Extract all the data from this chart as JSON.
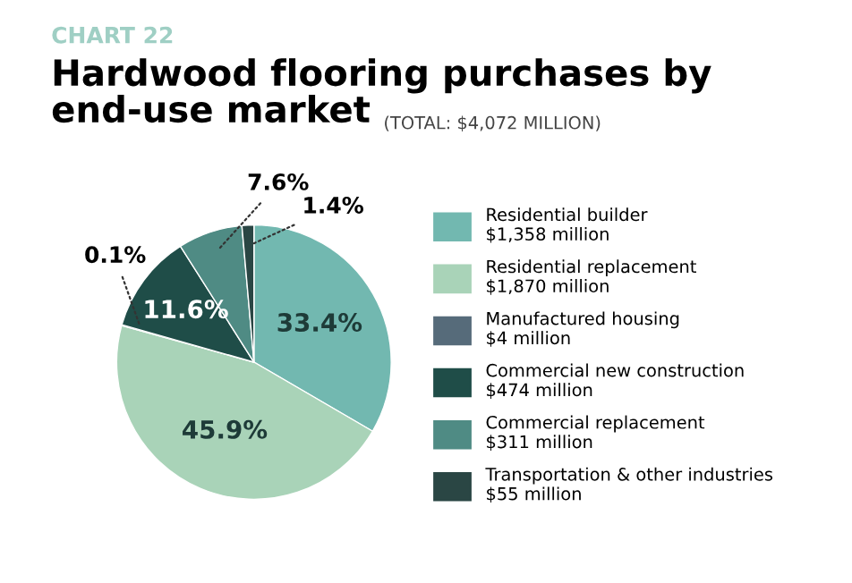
{
  "chart_data": {
    "type": "pie",
    "title": "Hardwood flooring purchases by end-use market",
    "subtitle": "(TOTAL: $4,072 MILLION)",
    "annotations": [
      "CHART 22"
    ],
    "categories": [
      "Residential builder\n$1,358 million",
      "Residential replacement\n$1,870 million",
      "Manufactured housing\n$4 million",
      "Commercial new construction\n$474 million",
      "Commercial replacement\n$311 million",
      "Transportation & other industries\n$55 million"
    ],
    "values": [
      33.4,
      45.9,
      0.1,
      11.6,
      7.6,
      1.4
    ],
    "value_labels": [
      "33.4%",
      "45.9%",
      "0.1%",
      "11.6%",
      "7.6%",
      "1.4%"
    ],
    "colors": [
      "#72b8b0",
      "#a9d3b8",
      "#566b7a",
      "#1f4d48",
      "#4f8b84",
      "#2a4644"
    ],
    "legend": "right"
  }
}
